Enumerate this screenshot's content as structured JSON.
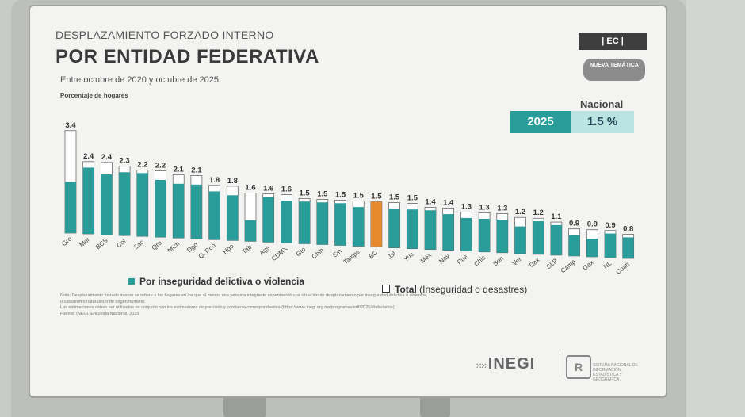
{
  "header": {
    "pre_title": "DESPLAZAMIENTO FORZADO INTERNO",
    "title": "POR ENTIDAD FEDERATIVA",
    "subtitle": "Entre octubre de 2020 y octubre de 2025",
    "tag": "| EC |",
    "badge": "NUEVA TEMÁTICA"
  },
  "nacional": {
    "label": "Nacional",
    "year": "2025",
    "value": "1.5 %"
  },
  "legend": {
    "series1": "Por inseguridad delictiva o violencia",
    "series2_bold": "Total",
    "series2_rest": "(Inseguridad o desastres)"
  },
  "notes": {
    "line1": "Nota:   Desplazamiento forzado interno se refiere a los hogares en los que al menos una persona integrante experimentó una situación de desplazamiento por inseguridad delictiva o violencia,",
    "line2": "             o catástrofes naturales o de origen humano.",
    "line3": "             Las estimaciones deben ser utilizadas en conjunto con los estimadores de precisión y confianza correspondientes (https://www.inegi.org.mx/programas/edf/2025/#tabulados)",
    "line4": "Fuente: INEGI. Encuesta Nacional. 2025"
  },
  "footer": {
    "logo": "INEGI",
    "logo2_mark": "R",
    "logo2_text": "SISTEMA NACIONAL DE INFORMACIÓN ESTADÍSTICA Y GEOGRÁFICA"
  },
  "colors": {
    "violence": "#2a9c9a",
    "highlight": "#e58a2e",
    "total_fill": "#ffffff",
    "stroke": "#555555"
  },
  "chart_data": {
    "type": "bar",
    "ylabel": "Porcentaje de hogares",
    "ylim": [
      0,
      3.6
    ],
    "highlight_category": "BC",
    "categories": [
      "Gro",
      "Mor",
      "BCS",
      "Col",
      "Zac",
      "Qro",
      "Mich",
      "Dgo",
      "Q. Roo",
      "Hgo",
      "Tab",
      "Ags",
      "CDMX",
      "Gto",
      "Chih",
      "Sin",
      "Tamps",
      "BC",
      "Jal",
      "Yuc",
      "Méx",
      "Nay",
      "Pue",
      "Chis",
      "Son",
      "Ver",
      "Tlax",
      "SLP",
      "Camp",
      "Oax",
      "NL",
      "Coah"
    ],
    "series": [
      {
        "name": "Total (Inseguridad o desastres)",
        "values": [
          3.4,
          2.4,
          2.4,
          2.3,
          2.2,
          2.2,
          2.1,
          2.1,
          1.8,
          1.8,
          1.6,
          1.6,
          1.6,
          1.5,
          1.5,
          1.5,
          1.5,
          1.5,
          1.5,
          1.5,
          1.4,
          1.4,
          1.3,
          1.3,
          1.3,
          1.2,
          1.2,
          1.1,
          0.9,
          0.9,
          0.9,
          0.8
        ]
      },
      {
        "name": "Por inseguridad delictiva o violencia",
        "values": [
          1.7,
          2.2,
          2.0,
          2.1,
          2.1,
          1.9,
          1.8,
          1.8,
          1.6,
          1.5,
          0.7,
          1.5,
          1.4,
          1.4,
          1.4,
          1.4,
          1.3,
          1.5,
          1.3,
          1.3,
          1.3,
          1.2,
          1.1,
          1.1,
          1.1,
          0.9,
          1.1,
          1.0,
          0.7,
          0.6,
          0.8,
          0.7
        ]
      }
    ]
  }
}
